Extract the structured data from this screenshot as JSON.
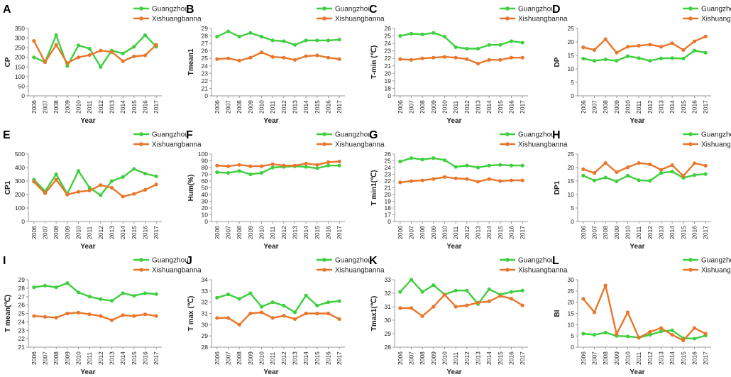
{
  "colors": {
    "guangzhou": "#3ecf3e",
    "xishuangbanna": "#e9762b",
    "axis": "#999999"
  },
  "chart_data": [
    {
      "letter": "A",
      "type": "line",
      "xlabel": "Year",
      "ylabel": "CP",
      "ylim": [
        0,
        350
      ],
      "yticks": [
        0,
        50,
        100,
        150,
        200,
        250,
        300,
        350
      ],
      "x": [
        2006,
        2007,
        2008,
        2009,
        2010,
        2011,
        2012,
        2013,
        2014,
        2015,
        2016,
        2017
      ],
      "series": [
        {
          "name": "Guangzhou",
          "values": [
            200,
            175,
            315,
            155,
            262,
            245,
            150,
            235,
            220,
            255,
            315,
            255
          ]
        },
        {
          "name": "Xishuangbanna",
          "values": [
            285,
            175,
            265,
            170,
            200,
            212,
            235,
            228,
            180,
            205,
            210,
            265
          ]
        }
      ]
    },
    {
      "letter": "B",
      "type": "line",
      "xlabel": "Year",
      "ylabel": "Tmean1",
      "ylim": [
        0,
        29
      ],
      "yticks": [
        0,
        21,
        22,
        23,
        24,
        25,
        26,
        27,
        28,
        29
      ],
      "ybreak": true,
      "x": [
        2006,
        2007,
        2008,
        2009,
        2010,
        2011,
        2012,
        2013,
        2014,
        2015,
        2016,
        2017
      ],
      "series": [
        {
          "name": "Guangzhou",
          "values": [
            27.9,
            28.6,
            27.9,
            28.4,
            27.9,
            27.4,
            27.3,
            26.8,
            27.4,
            27.4,
            27.4,
            27.5
          ]
        },
        {
          "name": "Xishuangbanna",
          "values": [
            24.9,
            25.0,
            24.7,
            25.1,
            25.8,
            25.2,
            25.1,
            24.8,
            25.3,
            25.4,
            25.1,
            24.9
          ]
        }
      ]
    },
    {
      "letter": "C",
      "type": "line",
      "xlabel": "Year",
      "ylabel": "T-min (℃)",
      "ylim": [
        0,
        26
      ],
      "yticks": [
        0,
        18,
        19,
        20,
        21,
        22,
        23,
        24,
        25,
        26
      ],
      "ybreak": true,
      "x": [
        2006,
        2007,
        2008,
        2009,
        2010,
        2011,
        2012,
        2013,
        2014,
        2015,
        2016,
        2017
      ],
      "series": [
        {
          "name": "Guangzhou",
          "values": [
            25.0,
            25.3,
            25.2,
            25.4,
            24.9,
            23.5,
            23.3,
            23.3,
            23.8,
            23.8,
            24.3,
            24.1
          ]
        },
        {
          "name": "Xishuangbanna",
          "values": [
            21.9,
            21.8,
            22.0,
            22.1,
            22.2,
            22.1,
            21.9,
            21.3,
            21.8,
            21.8,
            22.1,
            22.1
          ]
        }
      ]
    },
    {
      "letter": "D",
      "type": "line",
      "xlabel": "Year",
      "ylabel": "DP",
      "ylim": [
        0,
        25
      ],
      "yticks": [
        0,
        5,
        10,
        15,
        20,
        25
      ],
      "x": [
        2006,
        2007,
        2008,
        2009,
        2010,
        2011,
        2012,
        2013,
        2014,
        2015,
        2016,
        2017
      ],
      "series": [
        {
          "name": "Guangzhou",
          "values": [
            13.8,
            13.0,
            13.5,
            13.0,
            14.7,
            14.0,
            13.0,
            13.9,
            14.0,
            13.8,
            16.8,
            16.0
          ]
        },
        {
          "name": "Xishuangbanna",
          "values": [
            18.0,
            17.0,
            21.0,
            16.0,
            18.2,
            18.6,
            19.0,
            18.2,
            19.5,
            17.0,
            20.2,
            22.0
          ]
        }
      ]
    },
    {
      "letter": "E",
      "type": "line",
      "xlabel": "Year",
      "ylabel": "CP1",
      "ylim": [
        0,
        500
      ],
      "yticks": [
        0,
        100,
        200,
        300,
        400,
        500
      ],
      "x": [
        2006,
        2007,
        2008,
        2009,
        2010,
        2011,
        2012,
        2013,
        2014,
        2015,
        2016,
        2017
      ],
      "series": [
        {
          "name": "Guangzhou",
          "values": [
            310,
            225,
            350,
            205,
            375,
            250,
            195,
            300,
            330,
            390,
            355,
            335
          ]
        },
        {
          "name": "Xishuangbanna",
          "values": [
            295,
            210,
            310,
            200,
            220,
            230,
            270,
            250,
            185,
            205,
            235,
            275
          ]
        }
      ]
    },
    {
      "letter": "F",
      "type": "line",
      "xlabel": "Year",
      "ylabel": "Hum(%)",
      "ylim": [
        0,
        100
      ],
      "yticks": [
        0,
        10,
        20,
        30,
        40,
        50,
        60,
        70,
        80,
        90,
        100
      ],
      "x": [
        2006,
        2007,
        2008,
        2009,
        2010,
        2011,
        2012,
        2013,
        2014,
        2015,
        2016,
        2017
      ],
      "series": [
        {
          "name": "Guangzhou",
          "values": [
            73,
            72,
            75,
            70,
            72,
            80,
            81,
            82,
            81,
            79,
            83,
            83
          ]
        },
        {
          "name": "Xishuangbanna",
          "values": [
            83,
            82,
            84,
            82,
            82,
            85,
            83,
            83,
            86,
            84,
            88,
            89
          ]
        }
      ]
    },
    {
      "letter": "G",
      "type": "line",
      "xlabel": "Year",
      "ylabel": "T min1(℃)",
      "ylim": [
        0,
        26
      ],
      "yticks": [
        0,
        17,
        18,
        19,
        20,
        21,
        22,
        23,
        24,
        25,
        26
      ],
      "ybreak": true,
      "x": [
        2006,
        2007,
        2008,
        2009,
        2010,
        2011,
        2012,
        2013,
        2014,
        2015,
        2016,
        2017
      ],
      "series": [
        {
          "name": "Guangzhou",
          "values": [
            24.9,
            25.4,
            25.2,
            25.4,
            25.1,
            24.1,
            24.3,
            24.0,
            24.3,
            24.4,
            24.3,
            24.3
          ]
        },
        {
          "name": "Xishuangbanna",
          "values": [
            21.8,
            22.0,
            22.1,
            22.3,
            22.6,
            22.4,
            22.3,
            21.9,
            22.3,
            22.0,
            22.1,
            22.1
          ]
        }
      ]
    },
    {
      "letter": "H",
      "type": "line",
      "xlabel": "Year",
      "ylabel": "DP1",
      "ylim": [
        0,
        25
      ],
      "yticks": [
        0,
        5,
        10,
        15,
        20,
        25
      ],
      "x": [
        2006,
        2007,
        2008,
        2009,
        2010,
        2011,
        2012,
        2013,
        2014,
        2015,
        2016,
        2017
      ],
      "series": [
        {
          "name": "Guangzhou",
          "values": [
            17.0,
            15.2,
            16.3,
            14.9,
            17.0,
            15.3,
            15.1,
            18.0,
            18.5,
            16.2,
            17.2,
            17.6
          ]
        },
        {
          "name": "Xishuangbanna",
          "values": [
            19.4,
            18.0,
            21.7,
            18.3,
            20.1,
            21.7,
            21.2,
            19.2,
            20.9,
            16.9,
            21.6,
            20.7
          ]
        }
      ]
    },
    {
      "letter": "I",
      "type": "line",
      "xlabel": "Year",
      "ylabel": "T mean(℃)",
      "ylim": [
        21,
        29
      ],
      "yticks": [
        21,
        22,
        23,
        24,
        25,
        26,
        27,
        28,
        29
      ],
      "x": [
        2006,
        2007,
        2008,
        2009,
        2010,
        2011,
        2012,
        2013,
        2014,
        2015,
        2016,
        2017
      ],
      "series": [
        {
          "name": "Guangzhou",
          "values": [
            28.1,
            28.3,
            28.1,
            28.6,
            27.5,
            27.0,
            26.7,
            26.5,
            27.4,
            27.1,
            27.4,
            27.3
          ]
        },
        {
          "name": "Xishuangbanna",
          "values": [
            24.7,
            24.6,
            24.5,
            25.0,
            25.1,
            24.9,
            24.7,
            24.2,
            24.8,
            24.7,
            24.9,
            24.7
          ]
        }
      ]
    },
    {
      "letter": "J",
      "type": "line",
      "xlabel": "Year",
      "ylabel": "T max (℃)",
      "ylim": [
        28,
        34
      ],
      "yticks": [
        28,
        29,
        30,
        31,
        32,
        33,
        34
      ],
      "x": [
        2006,
        2007,
        2008,
        2009,
        2010,
        2011,
        2012,
        2013,
        2014,
        2015,
        2016,
        2017
      ],
      "series": [
        {
          "name": "Guangzhou",
          "values": [
            32.4,
            32.7,
            32.3,
            32.8,
            31.6,
            32.0,
            31.7,
            31.1,
            32.6,
            31.7,
            32.0,
            32.1
          ]
        },
        {
          "name": "Xishuangbanna",
          "values": [
            30.6,
            30.6,
            30.0,
            31.0,
            31.1,
            30.6,
            30.8,
            30.5,
            31.0,
            31.0,
            31.0,
            30.5
          ]
        }
      ]
    },
    {
      "letter": "K",
      "type": "line",
      "xlabel": "Year",
      "ylabel": "Tmax1(℃)",
      "ylim": [
        28,
        33
      ],
      "yticks": [
        28,
        29,
        30,
        31,
        32,
        33
      ],
      "x": [
        2006,
        2007,
        2008,
        2009,
        2010,
        2011,
        2012,
        2013,
        2014,
        2015,
        2016,
        2017
      ],
      "series": [
        {
          "name": "Guangzhou",
          "values": [
            32.1,
            33.0,
            32.1,
            32.6,
            31.9,
            32.2,
            32.2,
            31.2,
            32.3,
            31.9,
            32.1,
            32.2
          ]
        },
        {
          "name": "Xishuangbanna",
          "values": [
            30.9,
            30.9,
            30.3,
            31.0,
            31.9,
            31.0,
            31.1,
            31.3,
            31.4,
            31.8,
            31.6,
            31.1
          ]
        }
      ]
    },
    {
      "letter": "L",
      "type": "line",
      "xlabel": "Year",
      "ylabel": "BI",
      "ylim": [
        0,
        30
      ],
      "yticks": [
        0,
        5,
        10,
        15,
        20,
        25,
        30
      ],
      "x": [
        2006,
        2007,
        2008,
        2009,
        2010,
        2011,
        2012,
        2013,
        2014,
        2015,
        2016,
        2017
      ],
      "series": [
        {
          "name": "Guangzhou",
          "values": [
            6,
            5.5,
            6.5,
            5,
            4.8,
            4.3,
            5.5,
            7,
            7.5,
            4,
            3.8,
            5.2
          ]
        },
        {
          "name": "Xishuangbanna",
          "values": [
            21.5,
            15.5,
            27.5,
            5.8,
            15.5,
            4.2,
            6.8,
            8.5,
            5.5,
            3,
            8.5,
            6
          ]
        }
      ]
    }
  ]
}
